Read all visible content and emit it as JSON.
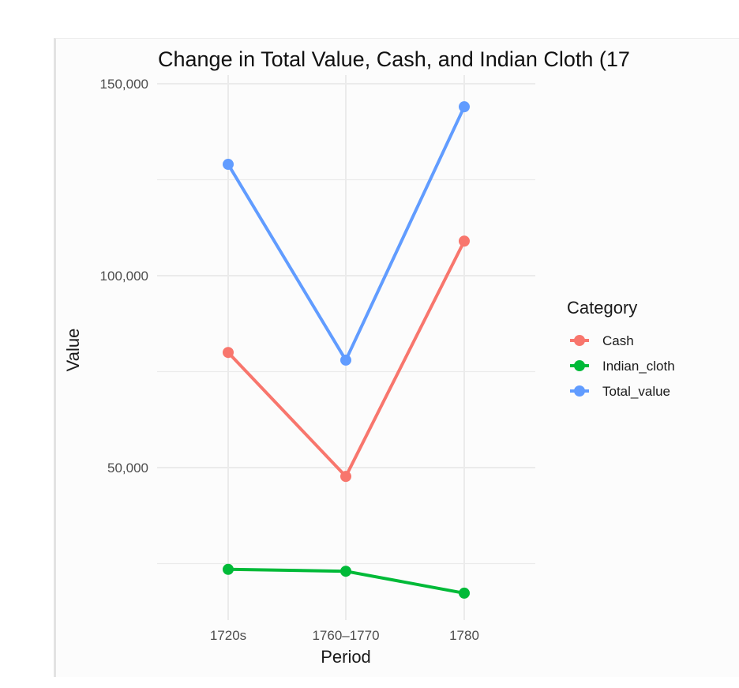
{
  "chart_data": {
    "type": "line",
    "title": "Change in Total Value, Cash, and Indian Cloth (17",
    "xlabel": "Period",
    "ylabel": "Value",
    "categories": [
      "1720s",
      "1760–1770",
      "1780"
    ],
    "y_ticks": [
      "50,000",
      "100,000",
      "150,000"
    ],
    "y_tick_values": [
      50000,
      100000,
      150000
    ],
    "ylim": [
      0,
      150000
    ],
    "grid": true,
    "legend": {
      "title": "Category",
      "position": "right"
    },
    "series": [
      {
        "name": "Cash",
        "color": "#F8766D",
        "values": [
          80000,
          47700,
          109000
        ]
      },
      {
        "name": "Indian_cloth",
        "color": "#00BA38",
        "values": [
          23500,
          23000,
          17300
        ]
      },
      {
        "name": "Total_value",
        "color": "#619CFF",
        "values": [
          129000,
          78000,
          144000
        ]
      }
    ]
  }
}
